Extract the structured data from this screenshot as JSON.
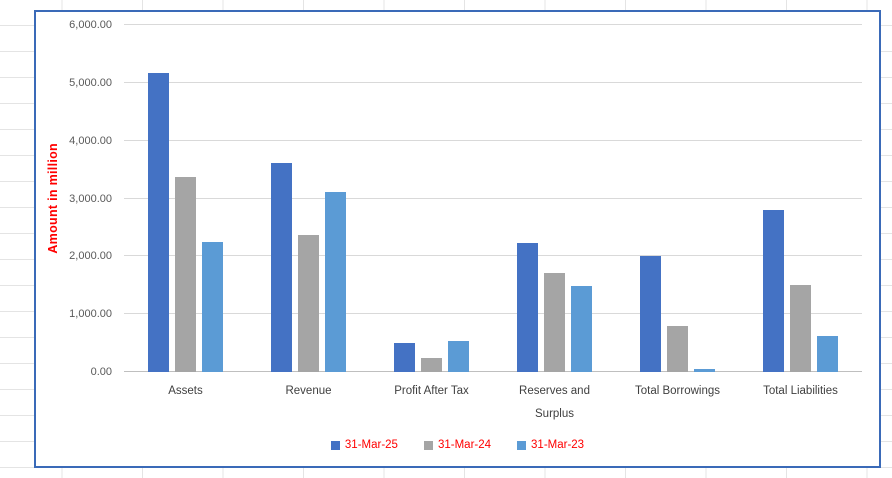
{
  "chart": {
    "object_border_color": "#3a6ab8",
    "plot_background": "#ffffff",
    "gridline_color": "#d9d9d9",
    "axis_line_color": "#bfbfbf",
    "tick_label_color": "#595959",
    "category_label_color": "#404040",
    "axis_title_color": "#ff0000",
    "legend_text_color": "#ff0000"
  },
  "chart_data": {
    "type": "bar",
    "title": "",
    "xlabel": "",
    "ylabel": "Amount in million",
    "ylim": [
      0,
      6000
    ],
    "y_tick_step": 1000,
    "y_ticks": [
      0,
      1000,
      2000,
      3000,
      4000,
      5000,
      6000
    ],
    "y_tick_labels": [
      "0.00",
      "1,000.00",
      "2,000.00",
      "3,000.00",
      "4,000.00",
      "5,000.00",
      "6,000.00"
    ],
    "grid": true,
    "legend_position": "bottom",
    "categories": [
      "Assets",
      "Revenue",
      "Profit After Tax",
      "Reserves and Surplus",
      "Total Borrowings",
      "Total Liabilities"
    ],
    "series": [
      {
        "name": "31-Mar-25",
        "color": "#4472c4",
        "values": [
          5170,
          3610,
          505,
          2230,
          2010,
          2800
        ]
      },
      {
        "name": "31-Mar-24",
        "color": "#a5a5a5",
        "values": [
          3370,
          2370,
          250,
          1720,
          800,
          1500
        ]
      },
      {
        "name": "31-Mar-23",
        "color": "#5b9bd5",
        "values": [
          2240,
          3110,
          540,
          1480,
          45,
          630
        ]
      }
    ]
  }
}
